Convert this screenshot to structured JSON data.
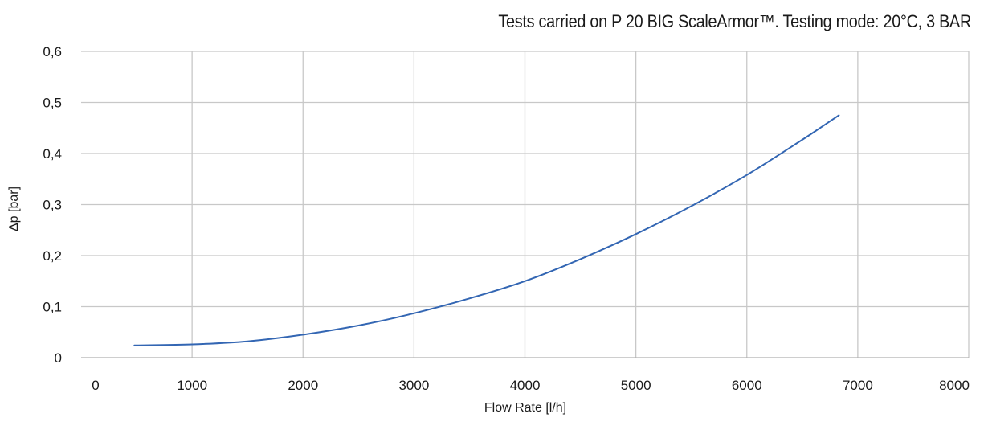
{
  "chart_data": {
    "type": "line",
    "title": "Tests carried on P 20 BIG ScaleArmor™. Testing mode: 20°C, 3 BAR",
    "xlabel": "Flow Rate [l/h]",
    "ylabel": "Δp [bar]",
    "xlim": [
      0,
      8000
    ],
    "ylim": [
      0,
      0.6
    ],
    "x_ticks": [
      "0",
      "1000",
      "2000",
      "3000",
      "4000",
      "5000",
      "6000",
      "7000",
      "8000"
    ],
    "y_ticks": [
      "0",
      "0,1",
      "0,2",
      "0,3",
      "0,4",
      "0,5",
      "0,6"
    ],
    "grid": true,
    "series": [
      {
        "name": "P 20 BIG ScaleArmor",
        "color": "#3366b3",
        "x": [
          480,
          1000,
          1500,
          2000,
          2500,
          3000,
          3500,
          4000,
          4500,
          5000,
          5500,
          6000,
          6500,
          6830
        ],
        "y": [
          0.024,
          0.026,
          0.032,
          0.045,
          0.063,
          0.087,
          0.116,
          0.15,
          0.193,
          0.242,
          0.297,
          0.358,
          0.427,
          0.475
        ]
      }
    ]
  }
}
